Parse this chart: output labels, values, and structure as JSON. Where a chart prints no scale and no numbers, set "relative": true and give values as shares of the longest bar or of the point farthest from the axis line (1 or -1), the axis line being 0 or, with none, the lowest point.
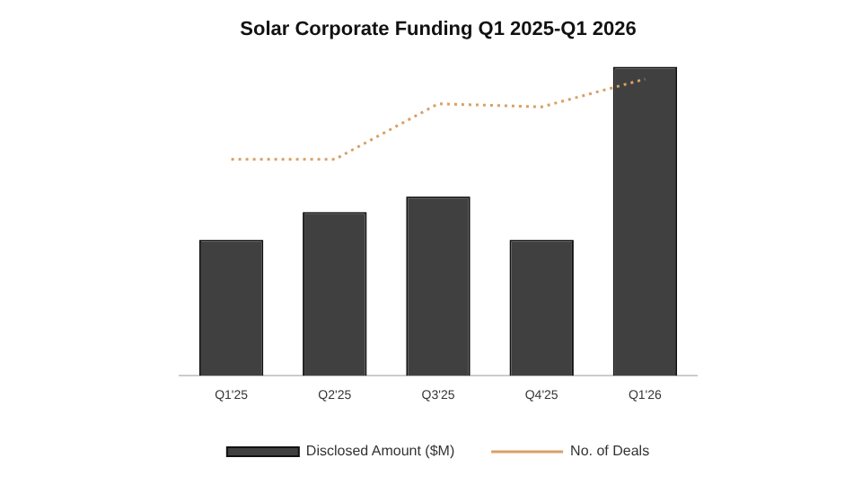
{
  "chart_data": {
    "type": "bar",
    "title": "Solar Corporate Funding Q1 2025-Q1 2026",
    "relative": true,
    "legend": "bottom",
    "marker": "none",
    "categories": [
      "Q1'25",
      "Q2'25",
      "Q3'25",
      "Q4'25",
      "Q1'26"
    ],
    "series": [
      {
        "name": "Disclosed Amount ($M)",
        "color": "#404040",
        "values": [
          0.44,
          0.53,
          0.58,
          0.44,
          1
        ]
      },
      {
        "name": "No. of Deals",
        "type": "line",
        "line_style": "dotted",
        "color": "#d9a066",
        "values": [
          0.7,
          0.7,
          0.88,
          0.87,
          0.96
        ]
      }
    ]
  }
}
